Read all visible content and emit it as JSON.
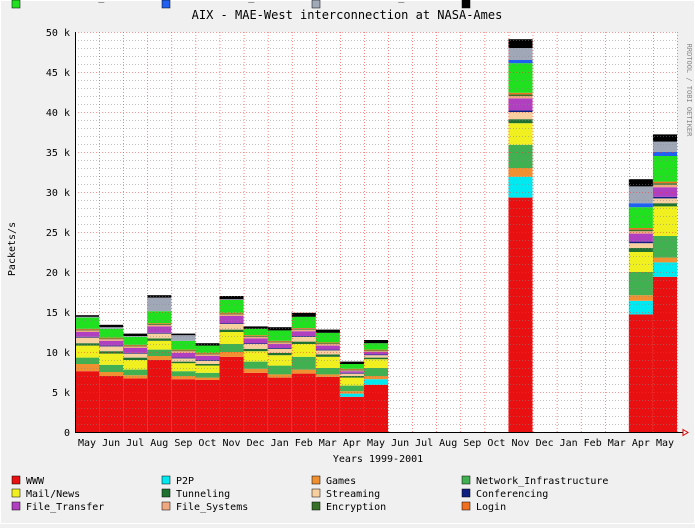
{
  "chart_data": {
    "type": "bar",
    "stacked": true,
    "title": "AIX - MAE-West interconnection at NASA-Ames",
    "xlabel": "Years 1999-2001",
    "ylabel": "Packets/s",
    "side_label": "RRDTOOL / TOBI OETIKER",
    "ylim": [
      0,
      50000
    ],
    "ytick_values": [
      0,
      5000,
      10000,
      15000,
      20000,
      25000,
      30000,
      35000,
      40000,
      45000,
      50000
    ],
    "ytick_labels": [
      "0",
      "5 k",
      "10 k",
      "15 k",
      "20 k",
      "25 k",
      "30 k",
      "35 k",
      "40 k",
      "45 k",
      "50 k"
    ],
    "grid": true,
    "legend_position": "bottom",
    "categories": [
      "May",
      "Jun",
      "Jul",
      "Aug",
      "Sep",
      "Oct",
      "Nov",
      "Dec",
      "Jan",
      "Feb",
      "Mar",
      "Apr",
      "May",
      "Jun",
      "Jul",
      "Aug",
      "Sep",
      "Oct",
      "Nov",
      "Dec",
      "Jan",
      "Feb",
      "Mar",
      "Apr",
      "May"
    ],
    "series": [
      {
        "name": "WWW",
        "color": "#e81010",
        "values": [
          7600,
          7000,
          6700,
          9000,
          6600,
          6500,
          9400,
          7400,
          6800,
          7300,
          6900,
          4400,
          5900,
          0,
          0,
          0,
          0,
          0,
          29300,
          0,
          0,
          0,
          0,
          14700,
          19400
        ]
      },
      {
        "name": "P2P",
        "color": "#00e8f0",
        "values": [
          0,
          0,
          0,
          0,
          0,
          0,
          0,
          0,
          0,
          0,
          0,
          400,
          700,
          0,
          0,
          0,
          0,
          0,
          2600,
          0,
          0,
          0,
          0,
          1700,
          1800
        ]
      },
      {
        "name": "Games",
        "color": "#f09030",
        "values": [
          900,
          500,
          400,
          500,
          400,
          300,
          600,
          500,
          400,
          500,
          300,
          300,
          400,
          0,
          0,
          0,
          0,
          0,
          1100,
          0,
          0,
          0,
          0,
          700,
          600
        ]
      },
      {
        "name": "Network_Infrastructure",
        "color": "#40b050",
        "values": [
          800,
          900,
          700,
          800,
          600,
          600,
          1000,
          900,
          1100,
          1600,
          800,
          700,
          1000,
          0,
          0,
          0,
          0,
          0,
          2900,
          0,
          0,
          0,
          0,
          2900,
          2700
        ]
      },
      {
        "name": "Mail/News",
        "color": "#f0f020",
        "values": [
          1500,
          1400,
          1200,
          1100,
          1000,
          900,
          1500,
          1300,
          1300,
          1600,
          1400,
          1000,
          1100,
          0,
          0,
          0,
          0,
          0,
          2700,
          0,
          0,
          0,
          0,
          2500,
          3700
        ]
      },
      {
        "name": "Tunneling",
        "color": "#207030",
        "values": [
          300,
          300,
          300,
          300,
          200,
          200,
          300,
          300,
          300,
          300,
          300,
          200,
          200,
          0,
          0,
          0,
          0,
          0,
          500,
          0,
          0,
          0,
          0,
          500,
          400
        ]
      },
      {
        "name": "Streaming",
        "color": "#f8d0a0",
        "values": [
          700,
          600,
          500,
          600,
          400,
          400,
          700,
          600,
          500,
          600,
          500,
          300,
          300,
          0,
          0,
          0,
          0,
          0,
          900,
          0,
          0,
          0,
          0,
          600,
          600
        ]
      },
      {
        "name": "Conferencing",
        "color": "#102080",
        "values": [
          100,
          100,
          100,
          100,
          100,
          100,
          100,
          100,
          100,
          100,
          100,
          100,
          100,
          0,
          0,
          0,
          0,
          0,
          200,
          0,
          0,
          0,
          0,
          200,
          200
        ]
      },
      {
        "name": "File_Transfer",
        "color": "#b040c0",
        "values": [
          600,
          600,
          600,
          800,
          600,
          500,
          900,
          600,
          500,
          600,
          500,
          200,
          300,
          0,
          0,
          0,
          0,
          0,
          1500,
          0,
          0,
          0,
          0,
          1000,
          1200
        ]
      },
      {
        "name": "File_Systems",
        "color": "#f0a880",
        "values": [
          200,
          200,
          200,
          200,
          200,
          200,
          200,
          200,
          200,
          200,
          200,
          100,
          100,
          0,
          0,
          0,
          0,
          0,
          300,
          0,
          0,
          0,
          0,
          300,
          300
        ]
      },
      {
        "name": "Encryption",
        "color": "#387028",
        "values": [
          100,
          100,
          100,
          100,
          100,
          100,
          100,
          100,
          100,
          100,
          100,
          100,
          100,
          0,
          0,
          0,
          0,
          0,
          200,
          0,
          0,
          0,
          0,
          200,
          200
        ]
      },
      {
        "name": "Login",
        "color": "#f07020",
        "values": [
          100,
          100,
          100,
          100,
          100,
          100,
          100,
          100,
          100,
          100,
          100,
          100,
          100,
          0,
          0,
          0,
          0,
          0,
          200,
          0,
          0,
          0,
          0,
          200,
          200
        ]
      },
      {
        "name": "Unclassified_TCP",
        "color": "#20e020",
        "values": [
          1400,
          1100,
          1000,
          1500,
          1100,
          900,
          1600,
          800,
          1300,
          1400,
          1200,
          600,
          800,
          0,
          0,
          0,
          0,
          0,
          3700,
          0,
          0,
          0,
          0,
          2600,
          3200
        ]
      },
      {
        "name": "Unclassified_ICMP",
        "color": "#2060f0",
        "values": [
          0,
          0,
          0,
          0,
          0,
          0,
          0,
          0,
          0,
          0,
          0,
          0,
          0,
          0,
          0,
          0,
          0,
          0,
          400,
          0,
          0,
          0,
          0,
          500,
          500
        ]
      },
      {
        "name": "Unclassified_UDP",
        "color": "#a0a8b8",
        "values": [
          100,
          200,
          100,
          1700,
          700,
          0,
          100,
          0,
          0,
          0,
          0,
          0,
          0,
          0,
          0,
          0,
          0,
          0,
          1500,
          0,
          0,
          0,
          0,
          2100,
          1300
        ]
      },
      {
        "name": "Other",
        "color": "#000000",
        "values": [
          200,
          300,
          300,
          300,
          200,
          300,
          400,
          300,
          400,
          500,
          400,
          300,
          400,
          0,
          0,
          0,
          0,
          0,
          1100,
          0,
          0,
          0,
          0,
          900,
          900
        ]
      }
    ]
  }
}
